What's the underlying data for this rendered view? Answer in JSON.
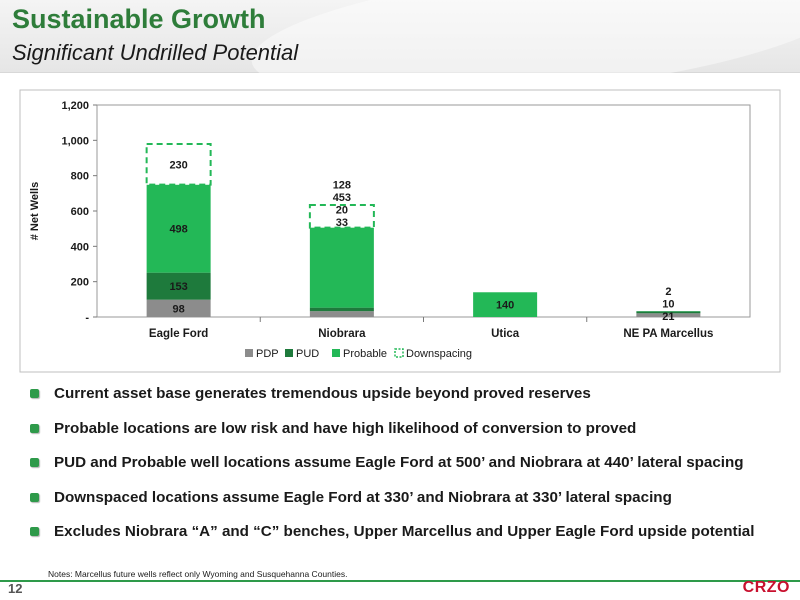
{
  "header": {
    "title": "Sustainable Growth",
    "subtitle": "Significant Undrilled Potential"
  },
  "chart_data": {
    "type": "bar",
    "stacked": true,
    "categories": [
      "Eagle Ford",
      "Niobrara",
      "Utica",
      "NE PA Marcellus"
    ],
    "series": [
      {
        "name": "PDP",
        "values": [
          98,
          33,
          0,
          21
        ],
        "color": "#8c8c8c"
      },
      {
        "name": "PUD",
        "values": [
          153,
          20,
          0,
          10
        ],
        "color": "#1e7a3c"
      },
      {
        "name": "Probable",
        "values": [
          498,
          453,
          140,
          2
        ],
        "color": "#23b857"
      },
      {
        "name": "Downspacing",
        "values": [
          230,
          128,
          0,
          0
        ],
        "color": "#23b857",
        "style": "dashed-outline"
      }
    ],
    "data_labels": [
      [
        "98",
        "153",
        "498",
        "230"
      ],
      [
        "33",
        "20",
        "453",
        "128"
      ],
      [
        "",
        "",
        "140",
        ""
      ],
      [
        "21",
        "10",
        "2",
        ""
      ]
    ],
    "ylabel": "# Net Wells",
    "ylim": [
      0,
      1200
    ],
    "yticks": [
      0,
      200,
      400,
      600,
      800,
      1000,
      1200
    ],
    "ytick_labels": [
      "-",
      "200",
      "400",
      "600",
      "800",
      "1,000",
      "1,200"
    ],
    "grid": false,
    "legend": "bottom"
  },
  "bullets": [
    "Current asset base generates tremendous upside beyond proved reserves",
    "Probable locations are low risk and have high likelihood of conversion to proved",
    "PUD and Probable well locations assume Eagle Ford at 500’ and Niobrara at 440’ lateral spacing",
    "Downspaced locations assume Eagle Ford at 330’ and Niobrara at 330’ lateral spacing",
    "Excludes Niobrara “A” and “C” benches, Upper Marcellus and Upper Eagle Ford upside potential"
  ],
  "notes": "Notes:  Marcellus future wells reflect only Wyoming and Susquehanna Counties.",
  "footer": {
    "page_number": "12",
    "logo": "CRZO"
  }
}
